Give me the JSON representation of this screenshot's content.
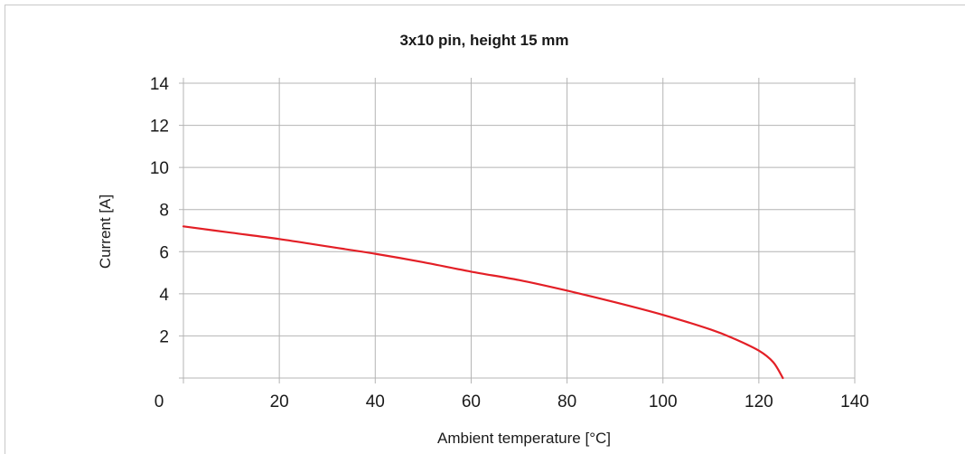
{
  "chart_data": {
    "type": "line",
    "title": "3x10 pin, height 15 mm",
    "xlabel": "Ambient temperature [°C]",
    "ylabel": "Current [A]",
    "xlim": [
      0,
      140
    ],
    "ylim": [
      0,
      14
    ],
    "x_ticks": [
      0,
      20,
      40,
      60,
      80,
      100,
      120,
      140
    ],
    "x_tick_labels": [
      "0",
      "20",
      "40",
      "60",
      "80",
      "100",
      "120",
      "140"
    ],
    "y_ticks": [
      2,
      4,
      6,
      8,
      10,
      12,
      14
    ],
    "y_tick_labels": [
      "2",
      "4",
      "6",
      "8",
      "10",
      "12",
      "14"
    ],
    "grid": true,
    "series": [
      {
        "color": "#e31f26",
        "x": [
          0,
          10,
          20,
          30,
          40,
          50,
          60,
          70,
          80,
          90,
          100,
          110,
          115,
          120,
          123,
          125
        ],
        "y": [
          7.2,
          6.9,
          6.6,
          6.25,
          5.9,
          5.5,
          5.05,
          4.65,
          4.15,
          3.6,
          3.0,
          2.3,
          1.85,
          1.3,
          0.75,
          0
        ]
      }
    ]
  }
}
